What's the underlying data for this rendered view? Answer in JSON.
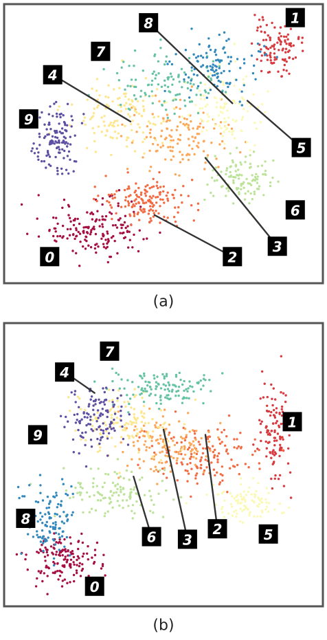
{
  "figure": {
    "label_a": "(a)",
    "label_b": "(b)"
  },
  "chart_data": [
    {
      "type": "scatter",
      "title": "",
      "xlabel": "",
      "ylabel": "",
      "panel": "(a)",
      "grid": false,
      "classes": [
        "0",
        "1",
        "2",
        "3",
        "4",
        "5",
        "6",
        "7",
        "8",
        "9"
      ],
      "colors": {
        "0": "#a50f43",
        "1": "#d73a3f",
        "2": "#f26b43",
        "3": "#fba85b",
        "4": "#fde68d",
        "5": "#fbf9b6",
        "6": "#bde39b",
        "7": "#66c2a5",
        "8": "#3288bd",
        "9": "#5e4fa2"
      },
      "clusters": [
        {
          "digit": "0",
          "center": [
            0.27,
            0.84
          ],
          "spread": [
            0.17,
            0.09
          ],
          "count": 170
        },
        {
          "digit": "1",
          "center": [
            0.88,
            0.12
          ],
          "spread": [
            0.07,
            0.09
          ],
          "count": 110
        },
        {
          "digit": "2",
          "center": [
            0.45,
            0.73
          ],
          "spread": [
            0.14,
            0.08
          ],
          "count": 150
        },
        {
          "digit": "3",
          "center": [
            0.55,
            0.48
          ],
          "spread": [
            0.16,
            0.12
          ],
          "count": 130
        },
        {
          "digit": "4",
          "center": [
            0.36,
            0.4
          ],
          "spread": [
            0.15,
            0.13
          ],
          "count": 130
        },
        {
          "digit": "5",
          "center": [
            0.72,
            0.38
          ],
          "spread": [
            0.12,
            0.14
          ],
          "count": 110
        },
        {
          "digit": "6",
          "center": [
            0.76,
            0.64
          ],
          "spread": [
            0.09,
            0.09
          ],
          "count": 110
        },
        {
          "digit": "7",
          "center": [
            0.52,
            0.27
          ],
          "spread": [
            0.18,
            0.1
          ],
          "count": 110
        },
        {
          "digit": "8",
          "center": [
            0.68,
            0.2
          ],
          "spread": [
            0.14,
            0.11
          ],
          "count": 110
        },
        {
          "digit": "9",
          "center": [
            0.14,
            0.5
          ],
          "spread": [
            0.07,
            0.13
          ],
          "count": 120
        }
      ],
      "annotations": [
        {
          "digit": "0",
          "badge": [
            0.12,
            0.94
          ],
          "target": null
        },
        {
          "digit": "1",
          "badge": [
            0.94,
            0.02
          ],
          "target": null
        },
        {
          "digit": "2",
          "badge": [
            0.73,
            0.94
          ],
          "target": [
            0.47,
            0.78
          ]
        },
        {
          "digit": "3",
          "badge": [
            0.88,
            0.9
          ],
          "target": [
            0.64,
            0.56
          ]
        },
        {
          "digit": "4",
          "badge": [
            0.13,
            0.24
          ],
          "target": [
            0.39,
            0.42
          ]
        },
        {
          "digit": "5",
          "badge": [
            0.96,
            0.52
          ],
          "target": [
            0.78,
            0.34
          ]
        },
        {
          "digit": "6",
          "badge": [
            0.94,
            0.76
          ],
          "target": null
        },
        {
          "digit": "7",
          "badge": [
            0.29,
            0.15
          ],
          "target": null
        },
        {
          "digit": "8",
          "badge": [
            0.45,
            0.04
          ],
          "target": [
            0.73,
            0.35
          ]
        },
        {
          "digit": "9",
          "badge": [
            0.05,
            0.41
          ],
          "target": null
        }
      ]
    },
    {
      "type": "scatter",
      "title": "",
      "xlabel": "",
      "ylabel": "",
      "panel": "(b)",
      "grid": false,
      "classes": [
        "0",
        "1",
        "2",
        "3",
        "4",
        "5",
        "6",
        "7",
        "8",
        "9"
      ],
      "colors": {
        "0": "#a50f43",
        "1": "#d73a3f",
        "2": "#f26b43",
        "3": "#fba85b",
        "4": "#fde68d",
        "5": "#fbf9b6",
        "6": "#bde39b",
        "7": "#66c2a5",
        "8": "#3288bd",
        "9": "#5e4fa2"
      },
      "clusters": [
        {
          "digit": "0",
          "center": [
            0.17,
            0.86
          ],
          "spread": [
            0.1,
            0.08
          ],
          "count": 150
        },
        {
          "digit": "1",
          "center": [
            0.87,
            0.38
          ],
          "spread": [
            0.05,
            0.18
          ],
          "count": 120
        },
        {
          "digit": "2",
          "center": [
            0.64,
            0.46
          ],
          "spread": [
            0.15,
            0.11
          ],
          "count": 140
        },
        {
          "digit": "3",
          "center": [
            0.52,
            0.42
          ],
          "spread": [
            0.15,
            0.11
          ],
          "count": 130
        },
        {
          "digit": "4",
          "center": [
            0.36,
            0.33
          ],
          "spread": [
            0.14,
            0.11
          ],
          "count": 120
        },
        {
          "digit": "5",
          "center": [
            0.78,
            0.64
          ],
          "spread": [
            0.11,
            0.06
          ],
          "count": 100
        },
        {
          "digit": "6",
          "center": [
            0.34,
            0.6
          ],
          "spread": [
            0.15,
            0.09
          ],
          "count": 120
        },
        {
          "digit": "7",
          "center": [
            0.49,
            0.2
          ],
          "spread": [
            0.15,
            0.06
          ],
          "count": 120
        },
        {
          "digit": "8",
          "center": [
            0.12,
            0.7
          ],
          "spread": [
            0.07,
            0.15
          ],
          "count": 110
        },
        {
          "digit": "9",
          "center": [
            0.27,
            0.31
          ],
          "spread": [
            0.09,
            0.12
          ],
          "count": 120
        }
      ],
      "annotations": [
        {
          "digit": "0",
          "badge": [
            0.27,
            0.96
          ],
          "target": null
        },
        {
          "digit": "1",
          "badge": [
            0.93,
            0.33
          ],
          "target": null
        },
        {
          "digit": "2",
          "badge": [
            0.68,
            0.74
          ],
          "target": [
            0.64,
            0.38
          ]
        },
        {
          "digit": "3",
          "badge": [
            0.58,
            0.78
          ],
          "target": [
            0.5,
            0.36
          ]
        },
        {
          "digit": "4",
          "badge": [
            0.17,
            0.14
          ],
          "target": [
            0.27,
            0.22
          ]
        },
        {
          "digit": "5",
          "badge": [
            0.85,
            0.76
          ],
          "target": null
        },
        {
          "digit": "6",
          "badge": [
            0.46,
            0.77
          ],
          "target": [
            0.4,
            0.54
          ]
        },
        {
          "digit": "7",
          "badge": [
            0.32,
            0.06
          ],
          "target": null
        },
        {
          "digit": "8",
          "badge": [
            0.04,
            0.7
          ],
          "target": null
        },
        {
          "digit": "9",
          "badge": [
            0.08,
            0.38
          ],
          "target": null
        }
      ]
    }
  ]
}
